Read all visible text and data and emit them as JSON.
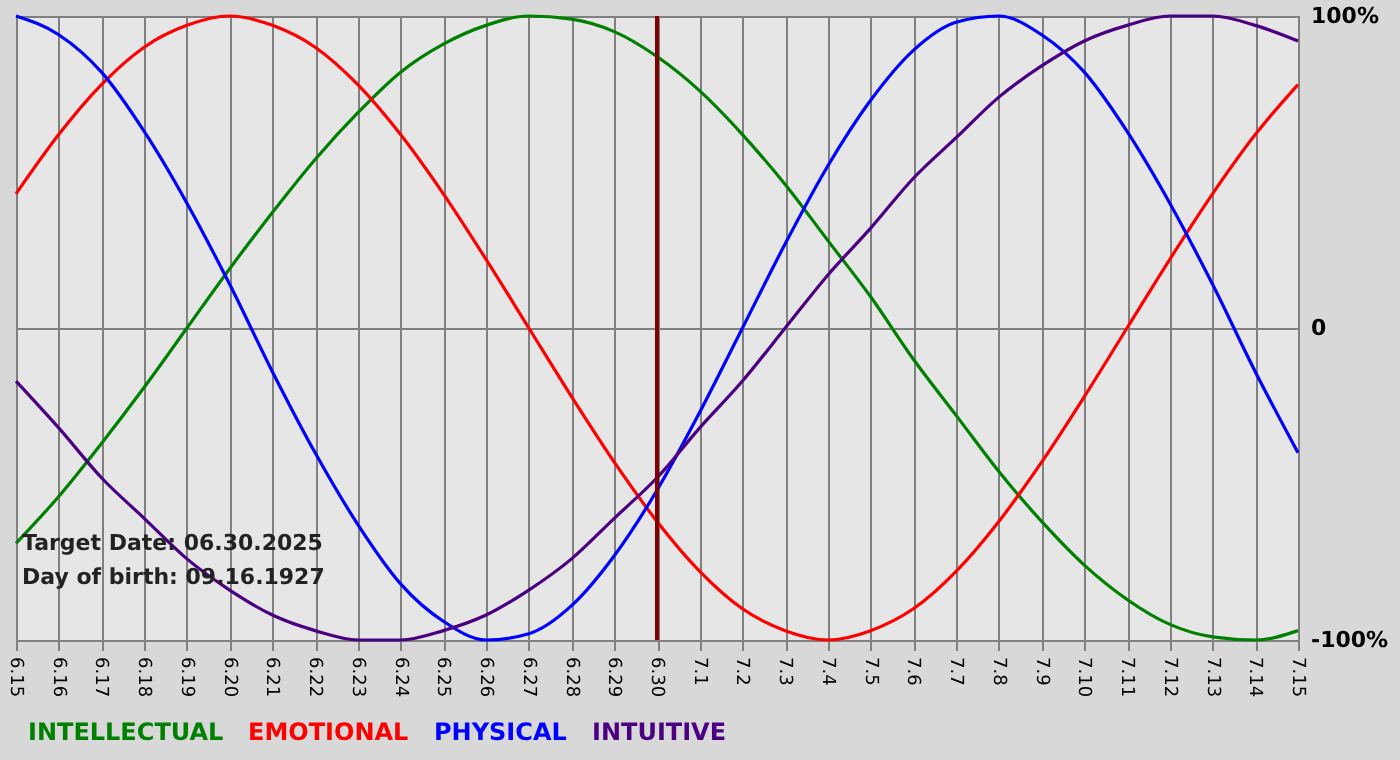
{
  "chart_data": {
    "type": "line",
    "categories": [
      "6.15",
      "6.16",
      "6.17",
      "6.18",
      "6.19",
      "6.20",
      "6.21",
      "6.22",
      "6.23",
      "6.24",
      "6.25",
      "6.26",
      "6.27",
      "6.28",
      "6.29",
      "6.30",
      "7.1",
      "7.2",
      "7.3",
      "7.4",
      "7.5",
      "7.6",
      "7.7",
      "7.8",
      "7.9",
      "7.10",
      "7.11",
      "7.12",
      "7.13",
      "7.14",
      "7.15"
    ],
    "series": [
      {
        "name": "INTELLECTUAL",
        "color": "#008000",
        "values": [
          -69,
          -54,
          -37,
          -19,
          0,
          19,
          37,
          54,
          69,
          82,
          91,
          97,
          100,
          99,
          95,
          87,
          76,
          62,
          46,
          28,
          10,
          -10,
          -28,
          -46,
          -62,
          -76,
          -87,
          -95,
          -99,
          -100,
          -97
        ]
      },
      {
        "name": "EMOTIONAL",
        "color": "#ff0000",
        "values": [
          43,
          62,
          78,
          90,
          97,
          100,
          97,
          90,
          78,
          62,
          43,
          22,
          0,
          -22,
          -43,
          -62,
          -78,
          -90,
          -97,
          -100,
          -97,
          -90,
          -78,
          -62,
          -43,
          -22,
          0,
          22,
          43,
          62,
          78
        ]
      },
      {
        "name": "PHYSICAL",
        "color": "#0000ff",
        "values": [
          100,
          94,
          82,
          63,
          40,
          14,
          -14,
          -40,
          -63,
          -82,
          -94,
          -100,
          -98,
          -89,
          -73,
          -52,
          -27,
          0,
          27,
          52,
          73,
          89,
          98,
          100,
          94,
          82,
          63,
          40,
          14,
          -14,
          -40
        ]
      },
      {
        "name": "INTUITIVE",
        "color": "#4b0082",
        "values": [
          -17,
          -32,
          -48,
          -61,
          -74,
          -84,
          -92,
          -97,
          -100,
          -100,
          -97,
          -92,
          -84,
          -74,
          -61,
          -48,
          -32,
          -17,
          0,
          17,
          32,
          48,
          61,
          74,
          84,
          92,
          97,
          100,
          100,
          97,
          92
        ]
      }
    ],
    "ylim": [
      -100,
      100
    ],
    "yticks": [
      {
        "value": 100,
        "label": "100%"
      },
      0,
      {
        "value": -100,
        "label": "-100%"
      }
    ],
    "ref_lines": [
      {
        "axis": "x",
        "value": "6.30",
        "color": "#800000"
      }
    ],
    "annotations": [
      "Target Date: 06.30.2025",
      "Day of birth: 09.16.1927"
    ],
    "grid": true,
    "legend": "bottom",
    "line_style": "solid"
  }
}
